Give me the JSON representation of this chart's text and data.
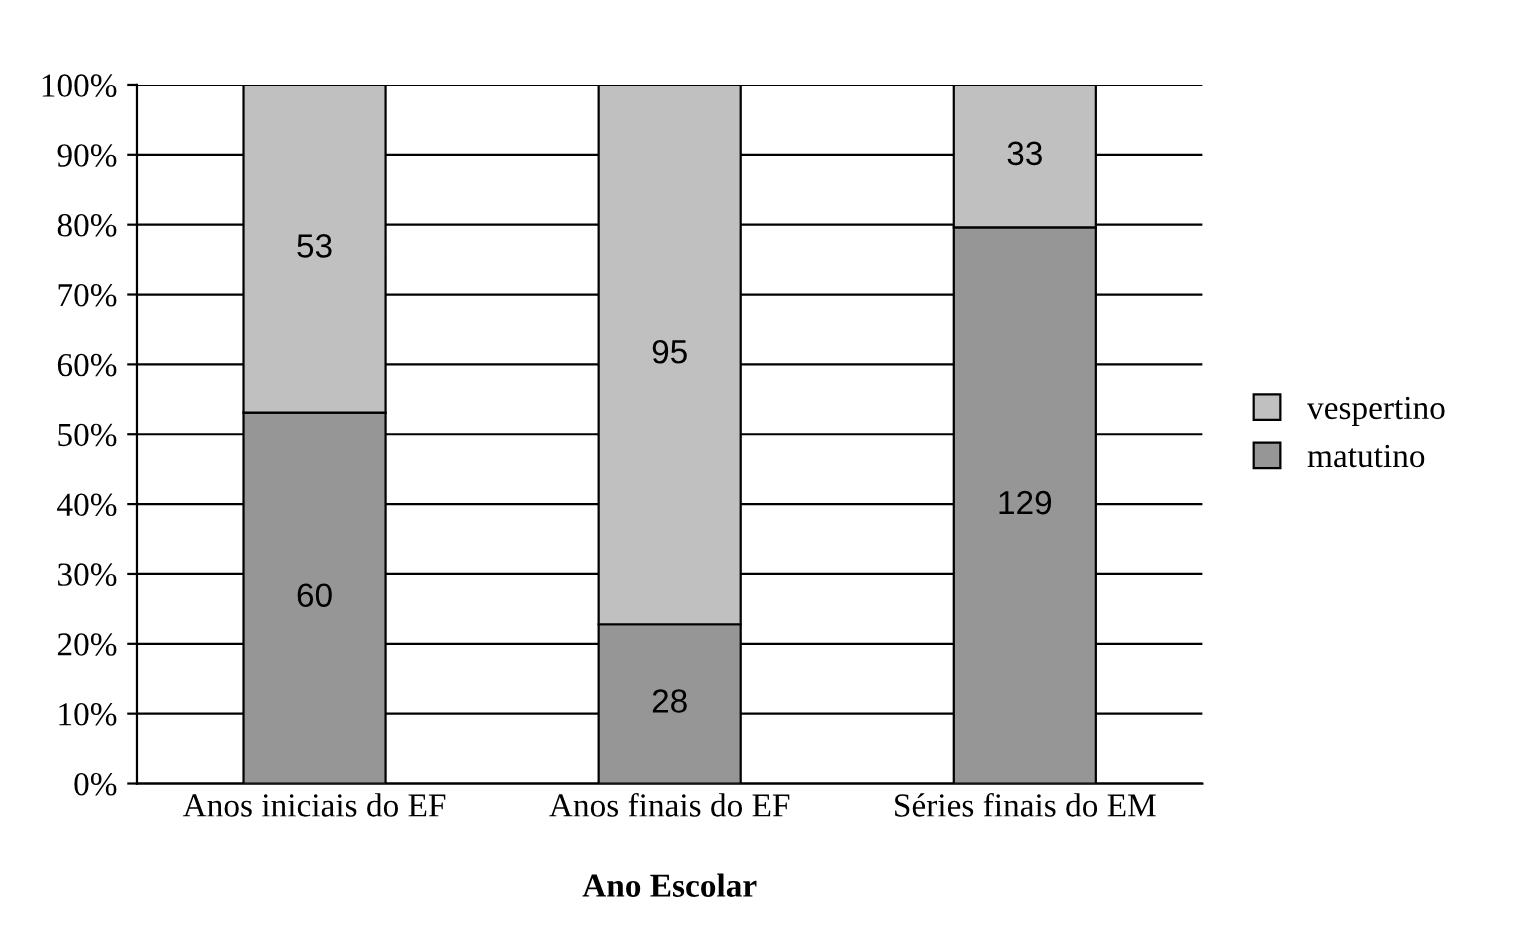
{
  "chart_data": {
    "type": "bar",
    "stacked": true,
    "xlabel": "Ano Escolar",
    "categories": [
      "Anos iniciais do EF",
      "Anos finais do EF",
      "Séries finais do EM"
    ],
    "series": [
      {
        "name": "matutino",
        "color": "#969696",
        "values": [
          53.1,
          22.8,
          79.6
        ]
      },
      {
        "name": "vespertino",
        "color": "#c0c0c0",
        "values": [
          46.9,
          77.2,
          20.4
        ]
      }
    ],
    "annotations": [
      "60",
      "53",
      "28",
      "95",
      "129",
      "33"
    ],
    "ylim": [
      0,
      100
    ],
    "yticks": [
      {
        "value": 0,
        "label": "0%"
      },
      {
        "value": 10,
        "label": "10%"
      },
      {
        "value": 20,
        "label": "20%"
      },
      {
        "value": 30,
        "label": "30%"
      },
      {
        "value": 40,
        "label": "40%"
      },
      {
        "value": 50,
        "label": "50%"
      },
      {
        "value": 60,
        "label": "60%"
      },
      {
        "value": 70,
        "label": "70%"
      },
      {
        "value": 80,
        "label": "80%"
      },
      {
        "value": 90,
        "label": "90%"
      },
      {
        "value": 100,
        "label": "100%"
      }
    ],
    "grid": "y",
    "legend": "right"
  }
}
